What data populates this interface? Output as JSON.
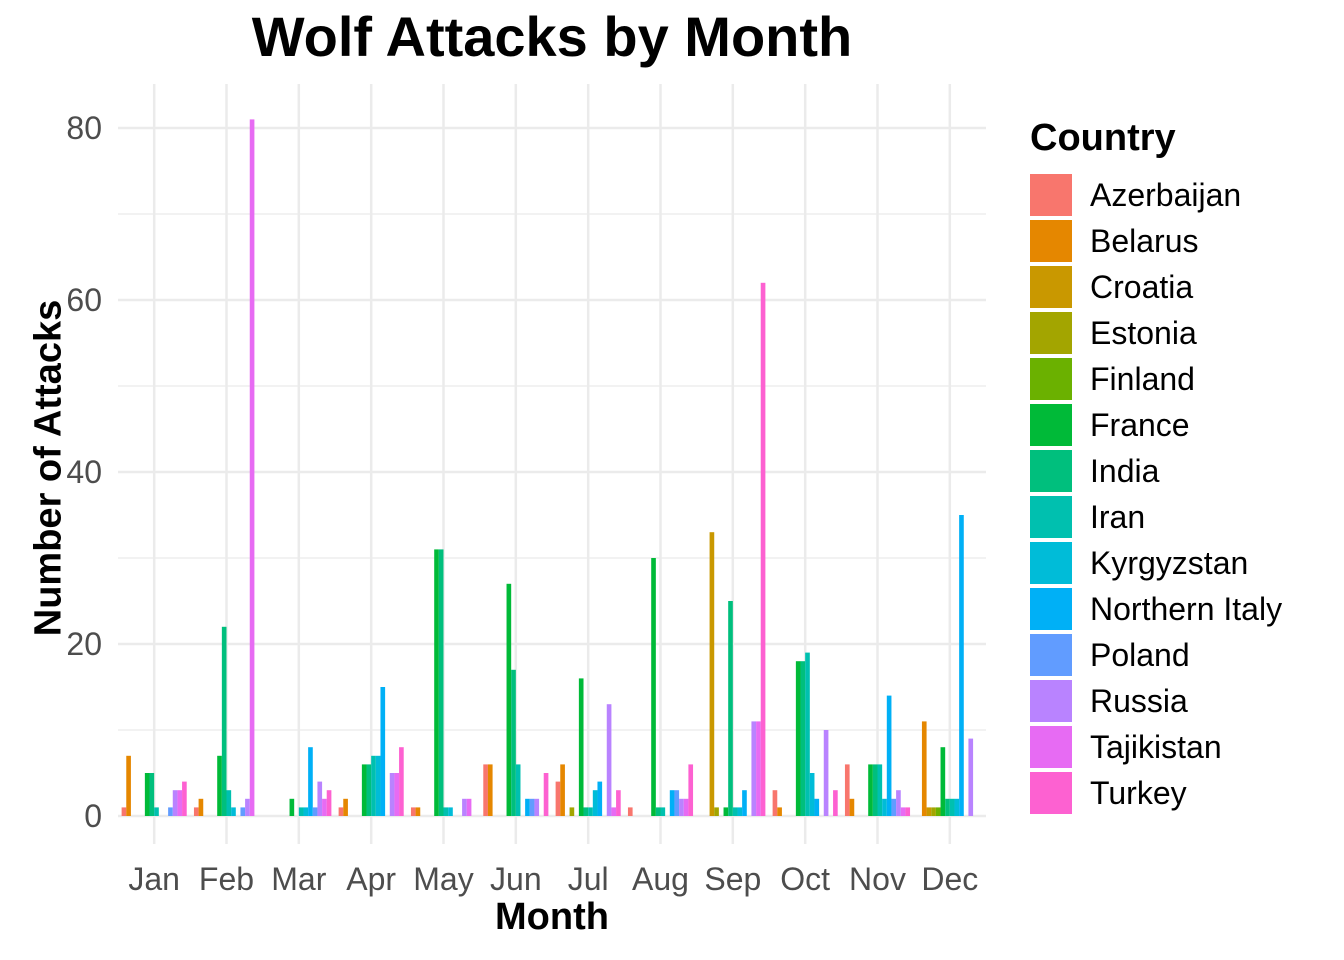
{
  "chart_data": {
    "type": "bar",
    "title": "Wolf Attacks by Month",
    "xlabel": "Month",
    "ylabel": "Number of Attacks",
    "categories": [
      "Jan",
      "Feb",
      "Mar",
      "Apr",
      "May",
      "Jun",
      "Jul",
      "Aug",
      "Sep",
      "Oct",
      "Nov",
      "Dec"
    ],
    "ylim": [
      0,
      85
    ],
    "yticks": [
      0,
      20,
      40,
      60,
      80
    ],
    "grid": true,
    "legend_title": "Country",
    "legend_position": "right",
    "series": [
      {
        "name": "Azerbaijan",
        "color": "#F8766D",
        "values": [
          1,
          1,
          0,
          1,
          1,
          6,
          4,
          1,
          0,
          3,
          6,
          0
        ]
      },
      {
        "name": "Belarus",
        "color": "#E58700",
        "values": [
          7,
          2,
          0,
          2,
          1,
          6,
          6,
          0,
          0,
          1,
          2,
          11
        ]
      },
      {
        "name": "Croatia",
        "color": "#C99800",
        "values": [
          0,
          0,
          0,
          0,
          0,
          0,
          0,
          0,
          33,
          0,
          0,
          1
        ]
      },
      {
        "name": "Estonia",
        "color": "#A3A500",
        "values": [
          0,
          0,
          0,
          0,
          0,
          0,
          1,
          0,
          1,
          0,
          0,
          1
        ]
      },
      {
        "name": "Finland",
        "color": "#6BB100",
        "values": [
          0,
          0,
          0,
          0,
          0,
          0,
          0,
          0,
          0,
          0,
          0,
          1
        ]
      },
      {
        "name": "France",
        "color": "#00BA38",
        "values": [
          5,
          7,
          2,
          6,
          31,
          27,
          16,
          30,
          1,
          18,
          6,
          8
        ]
      },
      {
        "name": "India",
        "color": "#00BF7D",
        "values": [
          5,
          22,
          0,
          6,
          31,
          17,
          1,
          1,
          25,
          18,
          6,
          2
        ]
      },
      {
        "name": "Iran",
        "color": "#00C0AF",
        "values": [
          1,
          3,
          1,
          7,
          1,
          6,
          1,
          1,
          1,
          19,
          6,
          2
        ]
      },
      {
        "name": "Kyrgyzstan",
        "color": "#00BCD8",
        "values": [
          0,
          1,
          1,
          7,
          1,
          0,
          3,
          0,
          1,
          5,
          2,
          2
        ]
      },
      {
        "name": "Northern Italy",
        "color": "#00B0F6",
        "values": [
          0,
          0,
          8,
          15,
          0,
          2,
          4,
          3,
          3,
          2,
          14,
          35
        ]
      },
      {
        "name": "Poland",
        "color": "#619CFF",
        "values": [
          1,
          1,
          1,
          0,
          0,
          2,
          0,
          3,
          0,
          0,
          2,
          0
        ]
      },
      {
        "name": "Russia",
        "color": "#B983FF",
        "values": [
          3,
          2,
          4,
          5,
          2,
          2,
          13,
          2,
          11,
          10,
          3,
          9
        ]
      },
      {
        "name": "Tajikistan",
        "color": "#E76BF3",
        "values": [
          3,
          81,
          2,
          5,
          2,
          0,
          1,
          2,
          11,
          0,
          1,
          0
        ]
      },
      {
        "name": "Turkey",
        "color": "#FD61D1",
        "values": [
          4,
          0,
          3,
          8,
          0,
          5,
          3,
          6,
          62,
          3,
          1,
          0
        ]
      }
    ]
  }
}
